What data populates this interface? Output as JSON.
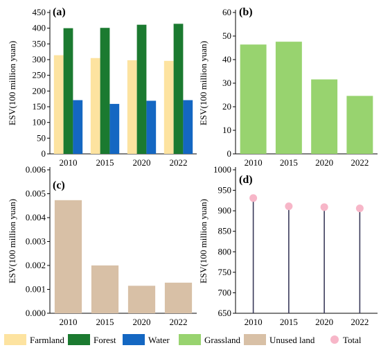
{
  "colors": {
    "farmland": "#fde3a0",
    "forest": "#1b7a30",
    "water": "#1467c2",
    "grassland": "#98d36f",
    "unused": "#d8c0a6",
    "total": "#f7b6c8",
    "stem": "#3a3a5a"
  },
  "chart_data": [
    {
      "panel": "(a)",
      "type": "bar",
      "categories": [
        "2010",
        "2015",
        "2020",
        "2022"
      ],
      "series": [
        {
          "name": "Farmland",
          "values": [
            314,
            305,
            298,
            296
          ]
        },
        {
          "name": "Forest",
          "values": [
            400,
            401,
            411,
            414
          ]
        },
        {
          "name": "Water",
          "values": [
            171,
            159,
            169,
            171
          ]
        }
      ],
      "ylabel": "ESV(100 million yuan)",
      "ylim": [
        0,
        450
      ],
      "yticks": [
        "0",
        "50",
        "100",
        "150",
        "200",
        "250",
        "300",
        "350",
        "400",
        "450"
      ]
    },
    {
      "panel": "(b)",
      "type": "bar",
      "categories": [
        "2010",
        "2015",
        "2020",
        "2022"
      ],
      "series": [
        {
          "name": "Grassland",
          "values": [
            46.4,
            47.6,
            31.6,
            24.6
          ]
        }
      ],
      "ylabel": "ESV(100 million yuan)",
      "ylim": [
        0,
        60
      ],
      "yticks": [
        "0",
        "10",
        "20",
        "30",
        "40",
        "50",
        "60"
      ]
    },
    {
      "panel": "(c)",
      "type": "bar",
      "categories": [
        "2010",
        "2015",
        "2020",
        "2022"
      ],
      "series": [
        {
          "name": "Unused land",
          "values": [
            0.00473,
            0.002,
            0.00115,
            0.00128
          ]
        }
      ],
      "ylabel": "ESV(100 million yuan)",
      "ylim": [
        0,
        0.006
      ],
      "yticks": [
        "0.000",
        "0.001",
        "0.002",
        "0.003",
        "0.004",
        "0.005",
        "0.006"
      ]
    },
    {
      "panel": "(d)",
      "type": "scatter",
      "categories": [
        "2010",
        "2015",
        "2020",
        "2022"
      ],
      "series": [
        {
          "name": "Total",
          "values": [
            931,
            911,
            909,
            906
          ]
        }
      ],
      "ylabel": "ESV(100 million yuan)",
      "ylim": [
        650,
        1000
      ],
      "yticks": [
        "650",
        "700",
        "750",
        "800",
        "850",
        "900",
        "950",
        "1000"
      ]
    }
  ],
  "legend": [
    {
      "label": "Farmland",
      "color": "farmland",
      "shape": "rect"
    },
    {
      "label": "Forest",
      "color": "forest",
      "shape": "rect"
    },
    {
      "label": "Water",
      "color": "water",
      "shape": "rect"
    },
    {
      "label": "Grassland",
      "color": "grassland",
      "shape": "rect"
    },
    {
      "label": "Unused land",
      "color": "unused",
      "shape": "rect"
    },
    {
      "label": "Total",
      "color": "total",
      "shape": "circle"
    }
  ]
}
